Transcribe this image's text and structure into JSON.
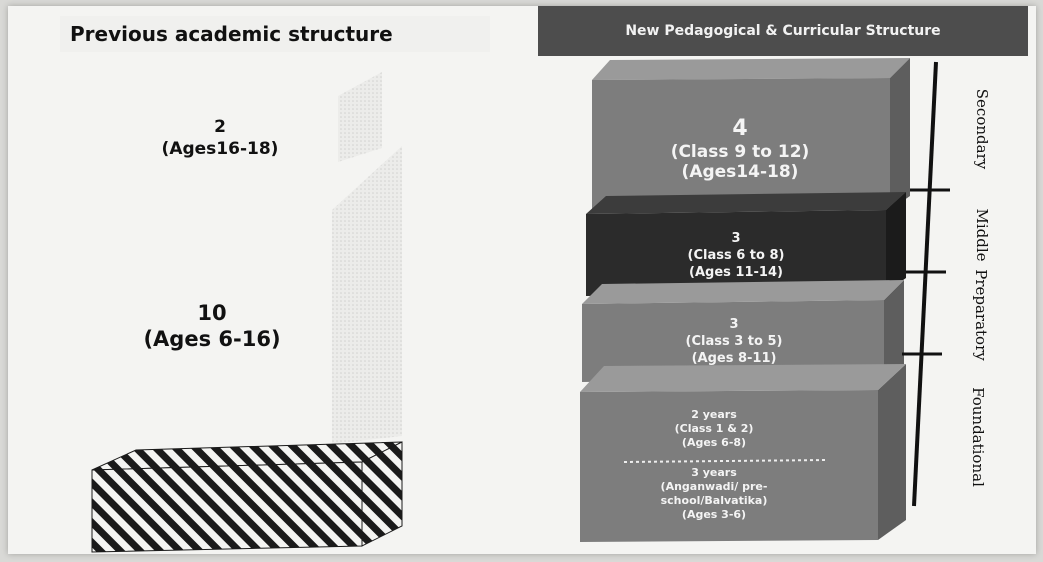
{
  "header": {
    "previous_title": "Previous academic structure",
    "new_title": "New Pedagogical & Curricular  Structure"
  },
  "previous": {
    "upper": {
      "years": "2",
      "ages": "(Ages16-18)"
    },
    "lower": {
      "years": "10",
      "ages": "(Ages 6-16)"
    }
  },
  "new_structure": {
    "secondary": {
      "years": "4",
      "classes": "(Class 9 to 12)",
      "ages": "(Ages14-18)"
    },
    "middle": {
      "years": "3",
      "classes": "(Class 6 to 8)",
      "ages": "(Ages 11-14)"
    },
    "preparatory": {
      "years": "3",
      "classes": "(Class 3 to 5)",
      "ages": "(Ages 8-11)"
    },
    "foundational": {
      "part1": {
        "years": "2 years",
        "classes": "(Class 1 & 2)",
        "ages": "(Ages 6-8)"
      },
      "part2": {
        "years": "3 years",
        "line1": "(Anganwadi/ pre-",
        "line2": "school/Balvatika)",
        "ages": "(Ages 3-6)"
      }
    }
  },
  "stages": {
    "secondary": "Secondary",
    "middle": "Middle",
    "preparatory": "Preparatory",
    "foundational": "Foundational"
  },
  "colors": {
    "block_gray": "#7d7d7d",
    "block_side": "#5e5e5e",
    "block_top": "#9a9a9a",
    "middle_block": "#2b2b2b",
    "header_bg": "#4d4d4d"
  }
}
